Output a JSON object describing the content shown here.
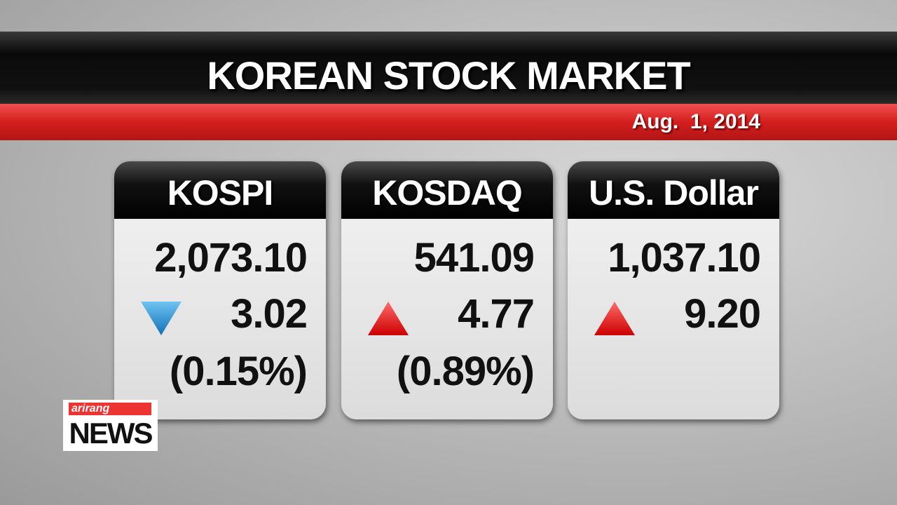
{
  "header": {
    "title": "KOREAN STOCK MARKET",
    "date": "Aug.  1, 2014"
  },
  "cards": [
    {
      "name": "KOSPI",
      "value": "2,073.10",
      "change": "3.02",
      "percent": "(0.15%)",
      "direction": "down"
    },
    {
      "name": "KOSDAQ",
      "value": "541.09",
      "change": "4.77",
      "percent": "(0.89%)",
      "direction": "up"
    },
    {
      "name": "U.S. Dollar",
      "value": "1,037.10",
      "change": "9.20",
      "direction": "up"
    }
  ],
  "logo": {
    "brand": "arirang",
    "name": "NEWS"
  }
}
